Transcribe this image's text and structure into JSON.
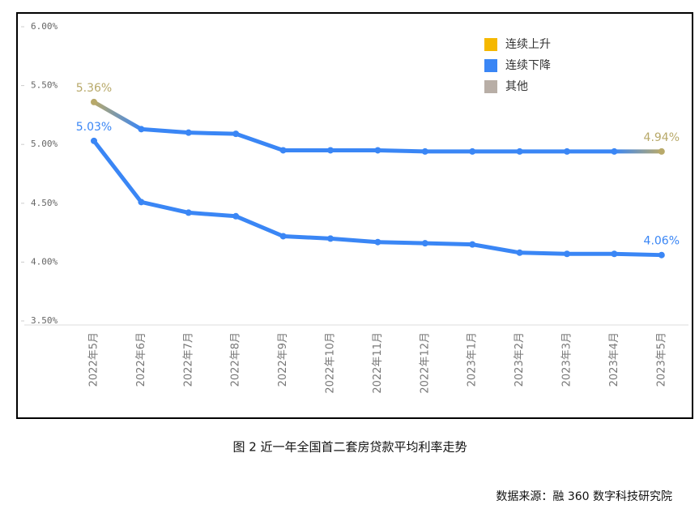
{
  "chart_data": {
    "type": "line",
    "title": "图 2 近一年全国首二套房贷款平均利率走势",
    "source": "数据来源：融 360 数字科技研究院",
    "categories": [
      "2022年5月",
      "2022年6月",
      "2022年7月",
      "2022年8月",
      "2022年9月",
      "2022年10月",
      "2022年11月",
      "2022年12月",
      "2023年1月",
      "2023年2月",
      "2023年3月",
      "2023年4月",
      "2023年5月"
    ],
    "series": [
      {
        "values": [
          5.36,
          5.13,
          5.1,
          5.09,
          4.95,
          4.95,
          4.95,
          4.94,
          4.94,
          4.94,
          4.94,
          4.94,
          4.94
        ],
        "value_labels": [
          "5.36%",
          null,
          null,
          null,
          null,
          null,
          null,
          null,
          null,
          null,
          null,
          null,
          "4.94%"
        ],
        "point_colors": [
          "#b8a96a",
          "#3a86f5",
          "#3a86f5",
          "#3a86f5",
          "#3a86f5",
          "#3a86f5",
          "#3a86f5",
          "#3a86f5",
          "#3a86f5",
          "#3a86f5",
          "#3a86f5",
          "#3a86f5",
          "#b8a96a"
        ]
      },
      {
        "values": [
          5.03,
          4.51,
          4.42,
          4.39,
          4.22,
          4.2,
          4.17,
          4.16,
          4.15,
          4.08,
          4.07,
          4.07,
          4.06
        ],
        "value_labels": [
          "5.03%",
          null,
          null,
          null,
          null,
          null,
          null,
          null,
          null,
          null,
          null,
          null,
          "4.06%"
        ],
        "point_colors": [
          "#3a86f5",
          "#3a86f5",
          "#3a86f5",
          "#3a86f5",
          "#3a86f5",
          "#3a86f5",
          "#3a86f5",
          "#3a86f5",
          "#3a86f5",
          "#3a86f5",
          "#3a86f5",
          "#3a86f5",
          "#3a86f5"
        ]
      }
    ],
    "legend": [
      {
        "name": "连续上升",
        "color": "#f5b800"
      },
      {
        "name": "连续下降",
        "color": "#3a86f5"
      },
      {
        "name": "其他",
        "color": "#b8aea6"
      }
    ],
    "ylim": [
      3.5,
      6
    ],
    "yticks": [
      {
        "value": 3.5,
        "label": "3.50%"
      },
      {
        "value": 4,
        "label": "4.00%"
      },
      {
        "value": 4.5,
        "label": "4.50%"
      },
      {
        "value": 5,
        "label": "5.00%"
      },
      {
        "value": 5.5,
        "label": "5.50%"
      },
      {
        "value": 6,
        "label": "6.00%"
      }
    ]
  }
}
